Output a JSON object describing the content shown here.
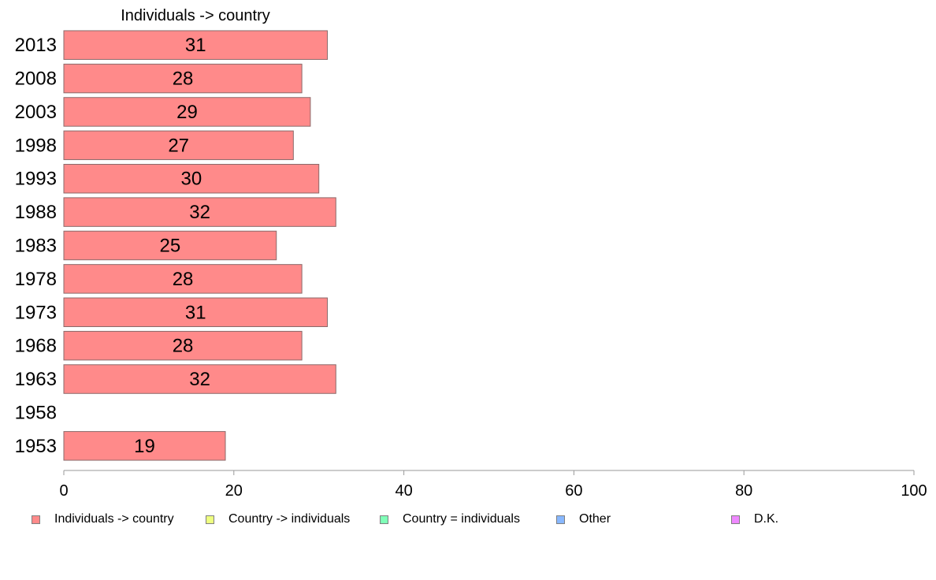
{
  "chart_data": {
    "type": "bar",
    "orientation": "horizontal",
    "title": "Individuals -> country",
    "categories": [
      "2013",
      "2008",
      "2003",
      "1998",
      "1993",
      "1988",
      "1983",
      "1978",
      "1973",
      "1968",
      "1963",
      "1958",
      "1953"
    ],
    "series": [
      {
        "name": "Individuals -> country",
        "color": "#ff8a8a",
        "values": [
          31,
          28,
          29,
          27,
          30,
          32,
          25,
          28,
          31,
          28,
          32,
          null,
          19
        ],
        "labels": [
          "31",
          "28",
          "29",
          "27",
          "30",
          "32",
          "25",
          "28",
          "31",
          "28",
          "32",
          "",
          "19"
        ]
      }
    ],
    "xlim": [
      0,
      100
    ],
    "xticks": [
      "0",
      "20",
      "40",
      "60",
      "80",
      "100"
    ],
    "xlabel": "",
    "ylabel": "",
    "grid": false,
    "legend_position": "bottom",
    "legend": [
      {
        "label": "Individuals -> country",
        "color": "#ff8a8a"
      },
      {
        "label": "Country -> individuals",
        "color": "#eeff80"
      },
      {
        "label": "Country = individuals",
        "color": "#80ffb8"
      },
      {
        "label": "Other",
        "color": "#88b8ff"
      },
      {
        "label": "D.K.",
        "color": "#ee88ff"
      }
    ]
  }
}
